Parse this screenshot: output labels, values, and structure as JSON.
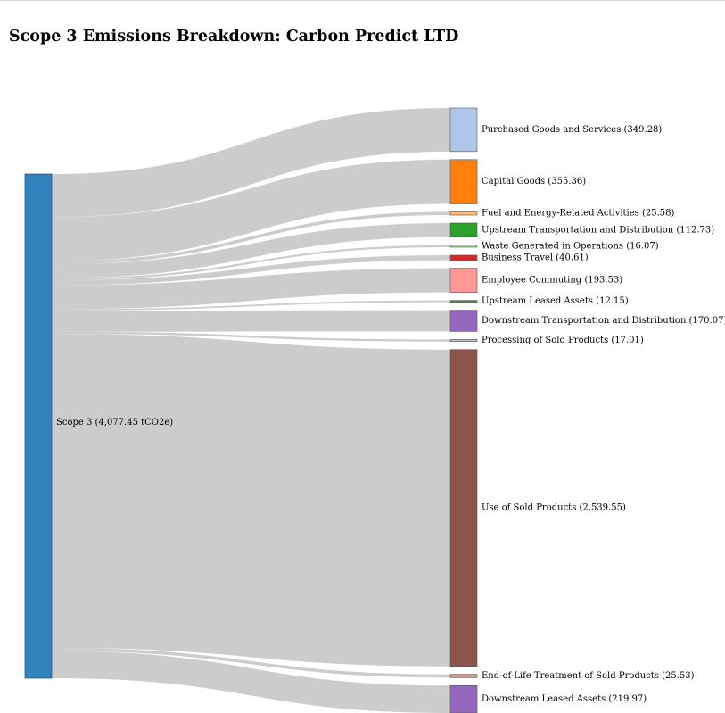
{
  "title": "Scope 3 Emissions Breakdown: Carbon Predict LTD",
  "chart_data": {
    "type": "sankey",
    "title": "Scope 3 Emissions Breakdown: Carbon Predict LTD",
    "link_color": "#cccccc",
    "source": {
      "name": "Scope 3",
      "label": "Scope 3 (4,077.45 tCO2e)",
      "value": 4077.45,
      "unit": "tCO2e",
      "color": "#3182bd"
    },
    "targets": [
      {
        "name": "Purchased Goods and Services",
        "value": 349.28,
        "label": "Purchased Goods and Services (349.28)",
        "color": "#aec7e8"
      },
      {
        "name": "Capital Goods",
        "value": 355.36,
        "label": "Capital Goods (355.36)",
        "color": "#ff7f0e"
      },
      {
        "name": "Fuel and Energy-Related Activities",
        "value": 25.58,
        "label": "Fuel and Energy-Related Activities (25.58)",
        "color": "#ffbb78"
      },
      {
        "name": "Upstream Transportation and Distribution",
        "value": 112.73,
        "label": "Upstream Transportation and Distribution (112.73)",
        "color": "#2ca02c"
      },
      {
        "name": "Waste Generated in Operations",
        "value": 16.07,
        "label": "Waste Generated in Operations (16.07)",
        "color": "#98df8a"
      },
      {
        "name": "Business Travel",
        "value": 40.61,
        "label": "Business Travel (40.61)",
        "color": "#d62728"
      },
      {
        "name": "Employee Commuting",
        "value": 193.53,
        "label": "Employee Commuting (193.53)",
        "color": "#ff9896"
      },
      {
        "name": "Upstream Leased Assets",
        "value": 12.15,
        "label": "Upstream Leased Assets (12.15)",
        "color": "#2ca02c"
      },
      {
        "name": "Downstream Transportation and Distribution",
        "value": 170.07,
        "label": "Downstream Transportation and Distribution (170.07)",
        "color": "#9467bd"
      },
      {
        "name": "Processing of Sold Products",
        "value": 17.01,
        "label": "Processing of Sold Products (17.01)",
        "color": "#c5b0d5"
      },
      {
        "name": "Use of Sold Products",
        "value": 2539.55,
        "label": "Use of Sold Products (2,539.55)",
        "color": "#8c564b"
      },
      {
        "name": "End-of-Life Treatment of Sold Products",
        "value": 25.53,
        "label": "End-of-Life Treatment of Sold Products (25.53)",
        "color": "#c49c94"
      },
      {
        "name": "Downstream Leased Assets",
        "value": 219.97,
        "label": "Downstream Leased Assets (219.97)",
        "color": "#9467bd"
      }
    ]
  }
}
